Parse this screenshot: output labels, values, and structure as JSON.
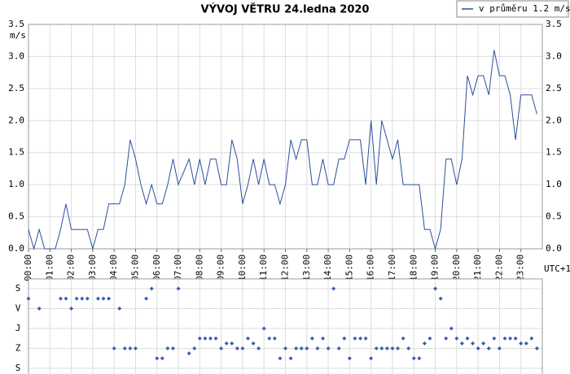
{
  "chart_data": [
    {
      "type": "line",
      "title": "VÝVOJ VĚTRU  24.ledna 2020",
      "ylabel": "m/s",
      "xlabel": "UTC+1",
      "legend": "top-right",
      "grid": true,
      "xlim": [
        0,
        24
      ],
      "ylim": [
        0,
        3.5
      ],
      "yticks": [
        {
          "value": 0,
          "label": "0.0"
        },
        {
          "value": 0.5,
          "label": "0.5"
        },
        {
          "value": 1,
          "label": "1.0"
        },
        {
          "value": 1.5,
          "label": "1.5"
        },
        {
          "value": 2,
          "label": "2.0"
        },
        {
          "value": 2.5,
          "label": "2.5"
        },
        {
          "value": 3,
          "label": "3.0"
        },
        {
          "value": 3.5,
          "label": "3.5"
        }
      ],
      "xticks": [
        {
          "value": 0,
          "label": "00:00"
        },
        {
          "value": 1,
          "label": "01:00"
        },
        {
          "value": 2,
          "label": "02:00"
        },
        {
          "value": 3,
          "label": "03:00"
        },
        {
          "value": 4,
          "label": "04:00"
        },
        {
          "value": 5,
          "label": "05:00"
        },
        {
          "value": 6,
          "label": "06:00"
        },
        {
          "value": 7,
          "label": "07:00"
        },
        {
          "value": 8,
          "label": "08:00"
        },
        {
          "value": 9,
          "label": "09:00"
        },
        {
          "value": 10,
          "label": "10:00"
        },
        {
          "value": 11,
          "label": "11:00"
        },
        {
          "value": 12,
          "label": "12:00"
        },
        {
          "value": 13,
          "label": "13:00"
        },
        {
          "value": 14,
          "label": "14:00"
        },
        {
          "value": 15,
          "label": "15:00"
        },
        {
          "value": 16,
          "label": "16:00"
        },
        {
          "value": 17,
          "label": "17:00"
        },
        {
          "value": 18,
          "label": "18:00"
        },
        {
          "value": 19,
          "label": "19:00"
        },
        {
          "value": 20,
          "label": "20:00"
        },
        {
          "value": 21,
          "label": "21:00"
        },
        {
          "value": 22,
          "label": "22:00"
        },
        {
          "value": 23,
          "label": "23:00"
        }
      ],
      "x": [
        0,
        0.25,
        0.5,
        0.75,
        1,
        1.25,
        1.5,
        1.75,
        2,
        2.25,
        2.5,
        2.75,
        3,
        3.25,
        3.5,
        3.75,
        4,
        4.25,
        4.5,
        4.75,
        5,
        5.25,
        5.5,
        5.75,
        6,
        6.25,
        6.5,
        6.75,
        7,
        7.25,
        7.5,
        7.75,
        8,
        8.25,
        8.5,
        8.75,
        9,
        9.25,
        9.5,
        9.75,
        10,
        10.25,
        10.5,
        10.75,
        11,
        11.25,
        11.5,
        11.75,
        12,
        12.25,
        12.5,
        12.75,
        13,
        13.25,
        13.5,
        13.75,
        14,
        14.25,
        14.5,
        14.75,
        15,
        15.25,
        15.5,
        15.75,
        16,
        16.25,
        16.5,
        16.75,
        17,
        17.25,
        17.5,
        17.75,
        18,
        18.25,
        18.5,
        18.75,
        19,
        19.25,
        19.5,
        19.75,
        20,
        20.25,
        20.5,
        20.75,
        21,
        21.25,
        21.5,
        21.75,
        22,
        22.25,
        22.5,
        22.75,
        23,
        23.25,
        23.5,
        23.75
      ],
      "series": [
        {
          "name": "v průměru 1.2 m/s",
          "color": "#2b4f9a",
          "values": [
            0.3,
            0,
            0.3,
            0,
            0,
            0,
            0.3,
            0.7,
            0.3,
            0.3,
            0.3,
            0.3,
            0,
            0.3,
            0.3,
            0.7,
            0.7,
            0.7,
            1.0,
            1.7,
            1.4,
            1.0,
            0.7,
            1.0,
            0.7,
            0.7,
            1.0,
            1.4,
            1.0,
            1.2,
            1.4,
            1.0,
            1.4,
            1.0,
            1.4,
            1.4,
            1.0,
            1.0,
            1.7,
            1.4,
            0.7,
            1.0,
            1.4,
            1.0,
            1.4,
            1.0,
            1.0,
            0.7,
            1.0,
            1.7,
            1.4,
            1.7,
            1.7,
            1.0,
            1.0,
            1.4,
            1.0,
            1.0,
            1.4,
            1.4,
            1.7,
            1.7,
            1.7,
            1.0,
            2.0,
            1.0,
            2.0,
            1.7,
            1.4,
            1.7,
            1.0,
            1.0,
            1.0,
            1.0,
            0.3,
            0.3,
            0,
            0.3,
            1.4,
            1.4,
            1.0,
            1.4,
            2.7,
            2.4,
            2.7,
            2.7,
            2.4,
            3.1,
            2.7,
            2.7,
            2.4,
            1.7,
            2.4,
            2.4,
            2.4,
            2.1
          ]
        }
      ]
    },
    {
      "type": "scatter",
      "color": "#3a5fa8",
      "grid": true,
      "xlim": [
        0,
        24
      ],
      "ylim": [
        0,
        360
      ],
      "y_inverted": true,
      "yticks": [
        {
          "value": 0,
          "label": "S"
        },
        {
          "value": 90,
          "label": "V"
        },
        {
          "value": 180,
          "label": "J"
        },
        {
          "value": 270,
          "label": "Z"
        },
        {
          "value": 360,
          "label": "S"
        }
      ],
      "x": [
        0,
        0.25,
        0.5,
        0.75,
        1,
        1.25,
        1.5,
        1.75,
        2,
        2.25,
        2.5,
        2.75,
        3,
        3.25,
        3.5,
        3.75,
        4,
        4.25,
        4.5,
        4.75,
        5,
        5.25,
        5.5,
        5.75,
        6,
        6.25,
        6.5,
        6.75,
        7,
        7.25,
        7.5,
        7.75,
        8,
        8.25,
        8.5,
        8.75,
        9,
        9.25,
        9.5,
        9.75,
        10,
        10.25,
        10.5,
        10.75,
        11,
        11.25,
        11.5,
        11.75,
        12,
        12.25,
        12.5,
        12.75,
        13,
        13.25,
        13.5,
        13.75,
        14,
        14.25,
        14.5,
        14.75,
        15,
        15.25,
        15.5,
        15.75,
        16,
        16.25,
        16.5,
        16.75,
        17,
        17.25,
        17.5,
        17.75,
        18,
        18.25,
        18.5,
        18.75,
        19,
        19.25,
        19.5,
        19.75,
        20,
        20.25,
        20.5,
        20.75,
        21,
        21.25,
        21.5,
        21.75,
        22,
        22.25,
        22.5,
        22.75,
        23,
        23.25,
        23.5,
        23.75
      ],
      "values": [
        45,
        null,
        90,
        null,
        null,
        null,
        45,
        45,
        90,
        45,
        45,
        45,
        null,
        45,
        45,
        45,
        270,
        90,
        270,
        270,
        270,
        null,
        45,
        0,
        315,
        315,
        270,
        270,
        0,
        null,
        292.5,
        270,
        225,
        225,
        225,
        225,
        270,
        247.5,
        247.5,
        270,
        270,
        225,
        247.5,
        270,
        180,
        225,
        225,
        315,
        270,
        315,
        270,
        270,
        270,
        225,
        270,
        225,
        270,
        0,
        270,
        225,
        315,
        225,
        225,
        225,
        315,
        270,
        270,
        270,
        270,
        270,
        225,
        270,
        315,
        315,
        247.5,
        225,
        0,
        45,
        225,
        180,
        225,
        247.5,
        225,
        247.5,
        270,
        247.5,
        270,
        225,
        270,
        225,
        225,
        225,
        247.5,
        247.5,
        225,
        270
      ]
    }
  ]
}
